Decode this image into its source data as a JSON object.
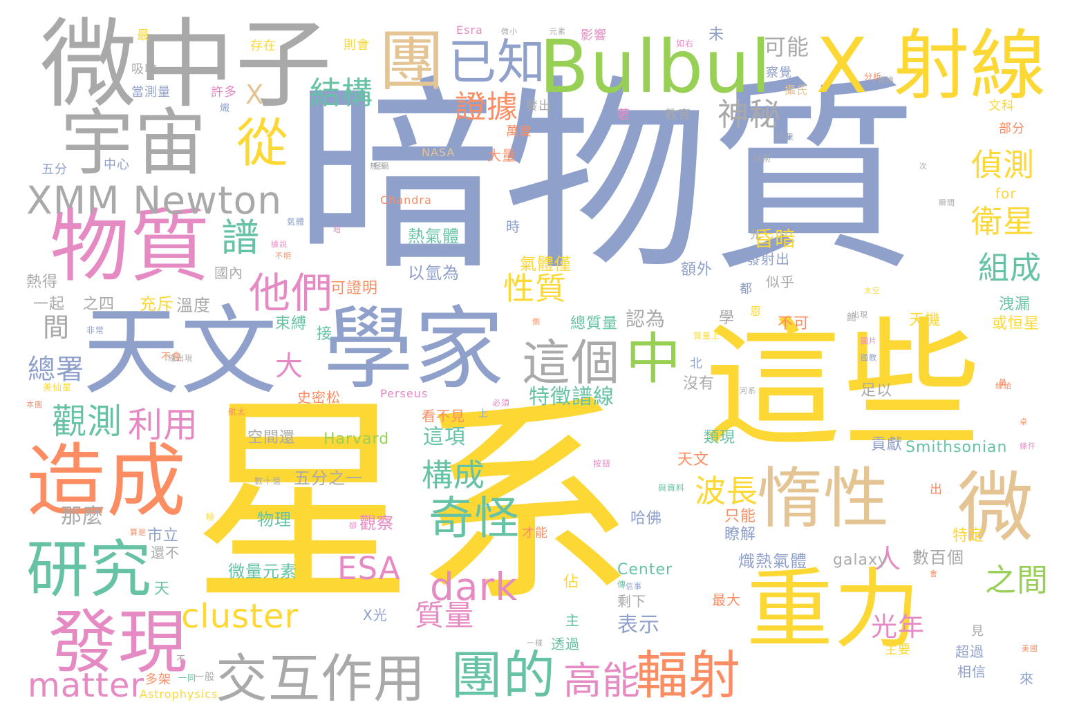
{
  "palette": {
    "yellow": "#fdd835",
    "blue": "#8fa0cb",
    "gray": "#a9a9a9",
    "green": "#98cf55",
    "pink": "#e68ac3",
    "orange": "#fc8d62",
    "tan": "#e5c494",
    "teal": "#66c2a5"
  },
  "words": [
    {
      "text": "星系",
      "color": "yellow"
    },
    {
      "text": "暗物質",
      "color": "blue"
    },
    {
      "text": "這些",
      "color": "yellow"
    },
    {
      "text": "微中子",
      "color": "gray"
    },
    {
      "text": "X 射線",
      "color": "yellow"
    },
    {
      "text": "Bulbul",
      "color": "green"
    },
    {
      "text": "天文",
      "color": "blue"
    },
    {
      "text": "學家",
      "color": "blue"
    },
    {
      "text": "物質",
      "color": "pink"
    },
    {
      "text": "重力",
      "color": "yellow"
    },
    {
      "text": "造成",
      "color": "orange"
    },
    {
      "text": "惰性",
      "color": "tan"
    },
    {
      "text": "微",
      "color": "tan"
    },
    {
      "text": "宇宙",
      "color": "gray"
    },
    {
      "text": "團",
      "color": "tan"
    },
    {
      "text": "已知",
      "color": "blue"
    },
    {
      "text": "XMM Newton",
      "color": "gray"
    },
    {
      "text": "研究",
      "color": "teal"
    },
    {
      "text": "發現",
      "color": "pink"
    },
    {
      "text": "交互作用",
      "color": "gray"
    },
    {
      "text": "團的",
      "color": "teal"
    },
    {
      "text": "輻射",
      "color": "orange"
    },
    {
      "text": "這個",
      "color": "gray"
    },
    {
      "text": "中",
      "color": "green"
    },
    {
      "text": "從",
      "color": "yellow"
    },
    {
      "text": "譜",
      "color": "teal"
    },
    {
      "text": "他們",
      "color": "pink"
    },
    {
      "text": "奇怪",
      "color": "teal"
    },
    {
      "text": "高能",
      "color": "pink"
    },
    {
      "text": "cluster",
      "color": "yellow"
    },
    {
      "text": "matter",
      "color": "pink"
    },
    {
      "text": "dark",
      "color": "pink"
    },
    {
      "text": "ESA",
      "color": "pink"
    },
    {
      "text": "觀測",
      "color": "teal"
    },
    {
      "text": "利用",
      "color": "pink"
    },
    {
      "text": "結構",
      "color": "teal"
    },
    {
      "text": "證據",
      "color": "orange"
    },
    {
      "text": "神秘",
      "color": "gray"
    },
    {
      "text": "偵測",
      "color": "yellow"
    },
    {
      "text": "衛星",
      "color": "yellow"
    },
    {
      "text": "組成",
      "color": "teal"
    },
    {
      "text": "性質",
      "color": "yellow"
    },
    {
      "text": "構成",
      "color": "teal"
    },
    {
      "text": "波長",
      "color": "yellow"
    },
    {
      "text": "光年",
      "color": "pink"
    },
    {
      "text": "之間",
      "color": "green"
    },
    {
      "text": "質量",
      "color": "pink"
    },
    {
      "text": "總署",
      "color": "blue"
    },
    {
      "text": "人",
      "color": "pink"
    },
    {
      "text": "大",
      "color": "pink"
    },
    {
      "text": "可能",
      "color": "gray"
    },
    {
      "text": "X",
      "color": "tan"
    },
    {
      "text": "間",
      "color": "gray"
    },
    {
      "text": "特徵譜線",
      "color": "teal"
    },
    {
      "text": "這項",
      "color": "teal"
    },
    {
      "text": "表示",
      "color": "blue"
    },
    {
      "text": "那麼",
      "color": "gray"
    },
    {
      "text": "昏暗",
      "color": "yellow"
    },
    {
      "text": "認為",
      "color": "gray"
    },
    {
      "text": "Smithsonian",
      "color": "teal"
    },
    {
      "text": "Harvard",
      "color": "green"
    },
    {
      "text": "Center",
      "color": "teal"
    },
    {
      "text": "galaxy",
      "color": "gray"
    },
    {
      "text": "Perseus",
      "color": "pink"
    },
    {
      "text": "Chandra",
      "color": "orange"
    },
    {
      "text": "NASA",
      "color": "tan"
    },
    {
      "text": "Esra",
      "color": "pink"
    },
    {
      "text": "for",
      "color": "yellow"
    },
    {
      "text": "Astrophysics",
      "color": "yellow"
    },
    {
      "text": "熾熱氣體",
      "color": "blue"
    },
    {
      "text": "數百個",
      "color": "gray"
    },
    {
      "text": "微量元素",
      "color": "teal"
    },
    {
      "text": "空間還",
      "color": "gray"
    },
    {
      "text": "五分之一",
      "color": "gray"
    },
    {
      "text": "熱氣體",
      "color": "teal"
    },
    {
      "text": "以氫為",
      "color": "blue"
    },
    {
      "text": "可證明",
      "color": "orange"
    },
    {
      "text": "溫度",
      "color": "gray"
    },
    {
      "text": "之四",
      "color": "gray"
    },
    {
      "text": "一起",
      "color": "gray"
    },
    {
      "text": "熱得",
      "color": "gray"
    },
    {
      "text": "國內",
      "color": "gray"
    },
    {
      "text": "充斥",
      "color": "yellow"
    },
    {
      "text": "氣體僅",
      "color": "yellow"
    },
    {
      "text": "發射出",
      "color": "blue"
    },
    {
      "text": "似乎",
      "color": "gray"
    },
    {
      "text": "額外",
      "color": "blue"
    },
    {
      "text": "總質量",
      "color": "teal"
    },
    {
      "text": "天機",
      "color": "yellow"
    },
    {
      "text": "或恒星",
      "color": "yellow"
    },
    {
      "text": "洩漏",
      "color": "teal"
    },
    {
      "text": "不可",
      "color": "orange"
    },
    {
      "text": "束縛",
      "color": "teal"
    },
    {
      "text": "接",
      "color": "teal"
    },
    {
      "text": "學",
      "color": "gray"
    },
    {
      "text": "沒有",
      "color": "gray"
    },
    {
      "text": "北",
      "color": "blue"
    },
    {
      "text": "足以",
      "color": "gray"
    },
    {
      "text": "類現",
      "color": "teal"
    },
    {
      "text": "天文",
      "color": "orange"
    },
    {
      "text": "貢獻",
      "color": "blue"
    },
    {
      "text": "哈佛",
      "color": "blue"
    },
    {
      "text": "只能",
      "color": "orange"
    },
    {
      "text": "瞭解",
      "color": "blue"
    },
    {
      "text": "特定",
      "color": "yellow"
    },
    {
      "text": "物理",
      "color": "teal"
    },
    {
      "text": "觀察",
      "color": "pink"
    },
    {
      "text": "市立",
      "color": "blue"
    },
    {
      "text": "還不",
      "color": "gray"
    },
    {
      "text": "才能",
      "color": "orange"
    },
    {
      "text": "佔",
      "color": "yellow"
    },
    {
      "text": "天",
      "color": "teal"
    },
    {
      "text": "主",
      "color": "teal"
    },
    {
      "text": "剩下",
      "color": "gray"
    },
    {
      "text": "最大",
      "color": "orange"
    },
    {
      "text": "透過",
      "color": "teal"
    },
    {
      "text": "X光",
      "color": "blue"
    },
    {
      "text": "多架",
      "color": "orange"
    },
    {
      "text": "一般",
      "color": "gray"
    },
    {
      "text": "超過",
      "color": "blue"
    },
    {
      "text": "相信",
      "color": "blue"
    },
    {
      "text": "來",
      "color": "blue"
    },
    {
      "text": "主要",
      "color": "yellow"
    },
    {
      "text": "見",
      "color": "gray"
    },
    {
      "text": "出",
      "color": "orange"
    },
    {
      "text": "看不見",
      "color": "orange"
    },
    {
      "text": "上",
      "color": "blue"
    },
    {
      "text": "史密松",
      "color": "orange"
    },
    {
      "text": "必須",
      "color": "pink"
    },
    {
      "text": "時",
      "color": "blue"
    },
    {
      "text": "光",
      "color": "gray"
    },
    {
      "text": "萬度",
      "color": "orange"
    },
    {
      "text": "大量",
      "color": "orange"
    },
    {
      "text": "發出",
      "color": "gray"
    },
    {
      "text": "說",
      "color": "blue"
    },
    {
      "text": "當測量",
      "color": "blue"
    },
    {
      "text": "吸收",
      "color": "gray"
    },
    {
      "text": "最",
      "color": "yellow"
    },
    {
      "text": "存在",
      "color": "yellow"
    },
    {
      "text": "則會",
      "color": "yellow"
    },
    {
      "text": "影響",
      "color": "pink"
    },
    {
      "text": "未",
      "color": "blue"
    },
    {
      "text": "文科",
      "color": "yellow"
    },
    {
      "text": "部分",
      "color": "orange"
    },
    {
      "text": "教育",
      "color": "gray"
    },
    {
      "text": "著",
      "color": "pink"
    },
    {
      "text": "許多",
      "color": "pink"
    },
    {
      "text": "五分",
      "color": "blue"
    },
    {
      "text": "中心",
      "color": "blue"
    },
    {
      "text": "攝氏",
      "color": "tan"
    },
    {
      "text": "察覺",
      "color": "blue"
    },
    {
      "text": "都",
      "color": "blue"
    },
    {
      "text": "恩",
      "color": "yellow"
    },
    {
      "text": "館",
      "color": "gray"
    },
    {
      "text": "分析",
      "color": "orange"
    },
    {
      "text": "以前",
      "color": "gray"
    },
    {
      "text": "氣體",
      "color": "blue"
    },
    {
      "text": "不會",
      "color": "orange"
    },
    {
      "text": "非常",
      "color": "blue"
    },
    {
      "text": "如右",
      "color": "pink"
    },
    {
      "text": "微小",
      "color": "gray"
    },
    {
      "text": "元素",
      "color": "gray"
    },
    {
      "text": "熾",
      "color": "blue"
    },
    {
      "text": "航太",
      "color": "orange"
    },
    {
      "text": "美國",
      "color": "orange"
    },
    {
      "text": "條件",
      "color": "pink"
    },
    {
      "text": "瞬間",
      "color": "gray"
    },
    {
      "text": "美仙星",
      "color": "yellow"
    },
    {
      "text": "量",
      "color": "orange"
    },
    {
      "text": "本團",
      "color": "orange"
    },
    {
      "text": "暗",
      "color": "pink"
    },
    {
      "text": "無所",
      "color": "gray"
    },
    {
      "text": "不明",
      "color": "orange"
    },
    {
      "text": "據說",
      "color": "pink"
    },
    {
      "text": "假設",
      "color": "gray"
    },
    {
      "text": "推論",
      "color": "gray"
    },
    {
      "text": "卓",
      "color": "orange"
    },
    {
      "text": "河系",
      "color": "gray"
    },
    {
      "text": "數十億",
      "color": "gray"
    },
    {
      "text": "與資料",
      "color": "teal"
    },
    {
      "text": "按鈕",
      "color": "pink"
    },
    {
      "text": "質量上",
      "color": "yellow"
    },
    {
      "text": "極",
      "color": "yellow"
    },
    {
      "text": "傳",
      "color": "teal"
    },
    {
      "text": "卻",
      "color": "pink"
    },
    {
      "text": "側",
      "color": "orange"
    },
    {
      "text": "出現",
      "color": "gray"
    },
    {
      "text": "不",
      "color": "gray"
    },
    {
      "text": "一同",
      "color": "teal"
    },
    {
      "text": "一樣",
      "color": "gray"
    },
    {
      "text": "會",
      "color": "orange"
    },
    {
      "text": "圖片",
      "color": "pink"
    },
    {
      "text": "信事",
      "color": "blue"
    },
    {
      "text": "算是",
      "color": "orange"
    },
    {
      "text": "結果",
      "color": "blue"
    },
    {
      "text": "見過",
      "color": "gray"
    },
    {
      "text": "次",
      "color": "gray"
    },
    {
      "text": "太空",
      "color": "yellow"
    },
    {
      "text": "國教",
      "color": "blue"
    },
    {
      "text": "緣給",
      "color": "orange"
    },
    {
      "text": "隨出現",
      "color": "gray"
    }
  ]
}
